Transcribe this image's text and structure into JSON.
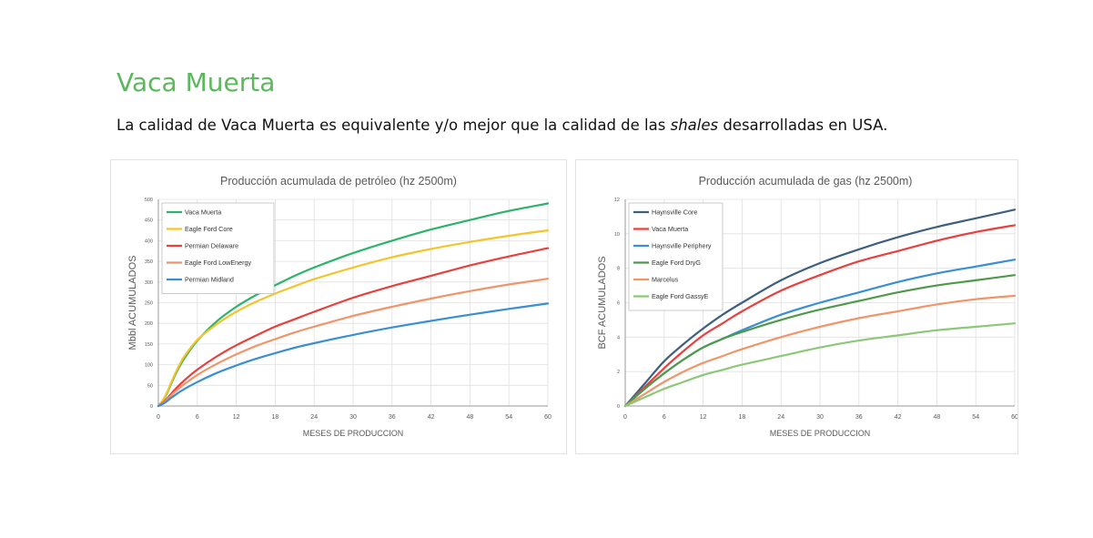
{
  "page": {
    "title": "Vaca Muerta",
    "subtitle_pre": "La calidad de Vaca Muerta es equivalente y/o mejor que la calidad de las ",
    "subtitle_em": "shales",
    "subtitle_post": " desarrolladas en USA."
  },
  "chart_data": [
    {
      "type": "line",
      "title": "Producción acumulada de petróleo (hz 2500m)",
      "xlabel": "MESES DE PRODUCCION",
      "ylabel": "Mbbl ACUMULADOS",
      "xlim": [
        0,
        60
      ],
      "ylim": [
        0,
        500
      ],
      "xticks": [
        0,
        6,
        12,
        18,
        24,
        30,
        36,
        42,
        48,
        54,
        60
      ],
      "yticks": [
        0,
        50,
        100,
        150,
        200,
        250,
        300,
        350,
        400,
        450,
        500
      ],
      "grid": true,
      "legend_position": "top-left",
      "x": [
        0,
        1,
        2,
        3,
        4,
        6,
        9,
        12,
        15,
        18,
        21,
        24,
        30,
        36,
        42,
        48,
        54,
        60
      ],
      "series": [
        {
          "name": "Vaca Muerta",
          "color": "#2db36b",
          "values": [
            0,
            20,
            55,
            88,
            115,
            158,
            205,
            240,
            268,
            292,
            315,
            335,
            370,
            400,
            427,
            450,
            472,
            490
          ]
        },
        {
          "name": "Eagle Ford Core",
          "color": "#f3c52a",
          "values": [
            0,
            22,
            58,
            92,
            120,
            160,
            198,
            228,
            252,
            272,
            290,
            307,
            335,
            360,
            380,
            397,
            412,
            425
          ]
        },
        {
          "name": "Permian Delaware",
          "color": "#e8403d",
          "values": [
            0,
            12,
            30,
            47,
            62,
            88,
            120,
            147,
            170,
            192,
            210,
            228,
            262,
            290,
            315,
            340,
            362,
            382
          ]
        },
        {
          "name": "Eagle Ford LowEnergy",
          "color": "#f0956a",
          "values": [
            0,
            10,
            26,
            40,
            53,
            75,
            102,
            125,
            145,
            162,
            178,
            192,
            218,
            240,
            260,
            278,
            294,
            308
          ]
        },
        {
          "name": "Permian Midland",
          "color": "#3a8fd2",
          "values": [
            0,
            8,
            20,
            31,
            41,
            58,
            80,
            98,
            114,
            128,
            141,
            152,
            172,
            190,
            206,
            221,
            235,
            248
          ]
        }
      ]
    },
    {
      "type": "line",
      "title": "Producción acumulada de gas (hz 2500m)",
      "xlabel": "MESES DE PRODUCCION",
      "ylabel": "BCF ACUMULADOS",
      "xlim": [
        0,
        60
      ],
      "ylim": [
        0,
        12
      ],
      "xticks": [
        0,
        6,
        12,
        18,
        24,
        30,
        36,
        42,
        48,
        54,
        60
      ],
      "yticks": [
        0,
        2,
        4,
        6,
        8,
        10,
        12
      ],
      "grid": true,
      "legend_position": "top-left",
      "x": [
        0,
        3,
        6,
        9,
        12,
        15,
        18,
        24,
        30,
        36,
        42,
        48,
        54,
        60
      ],
      "series": [
        {
          "name": "Haynsville Core",
          "color": "#3f5f7f",
          "values": [
            0,
            1.3,
            2.6,
            3.6,
            4.5,
            5.3,
            6.0,
            7.3,
            8.3,
            9.1,
            9.8,
            10.4,
            10.9,
            11.4
          ]
        },
        {
          "name": "Vaca Muerta",
          "color": "#e8403d",
          "values": [
            0,
            1.1,
            2.2,
            3.2,
            4.1,
            4.8,
            5.5,
            6.7,
            7.6,
            8.4,
            9.0,
            9.6,
            10.1,
            10.5
          ]
        },
        {
          "name": "Haynsville Periphery",
          "color": "#3a8fd2",
          "values": [
            0,
            1.0,
            1.9,
            2.7,
            3.4,
            3.9,
            4.4,
            5.3,
            6.0,
            6.6,
            7.2,
            7.7,
            8.1,
            8.5
          ]
        },
        {
          "name": "Eagle Ford DryG",
          "color": "#4f9a4a",
          "values": [
            0,
            1.0,
            1.9,
            2.7,
            3.4,
            3.9,
            4.3,
            5.0,
            5.6,
            6.1,
            6.6,
            7.0,
            7.3,
            7.6
          ]
        },
        {
          "name": "Marcelus",
          "color": "#f0956a",
          "values": [
            0,
            0.7,
            1.4,
            2.0,
            2.5,
            2.9,
            3.3,
            4.0,
            4.6,
            5.1,
            5.5,
            5.9,
            6.2,
            6.4
          ]
        },
        {
          "name": "Eagle Ford GassyE",
          "color": "#8cc878",
          "values": [
            0,
            0.5,
            1.0,
            1.4,
            1.8,
            2.1,
            2.4,
            2.9,
            3.4,
            3.8,
            4.1,
            4.4,
            4.6,
            4.8
          ]
        }
      ]
    }
  ]
}
